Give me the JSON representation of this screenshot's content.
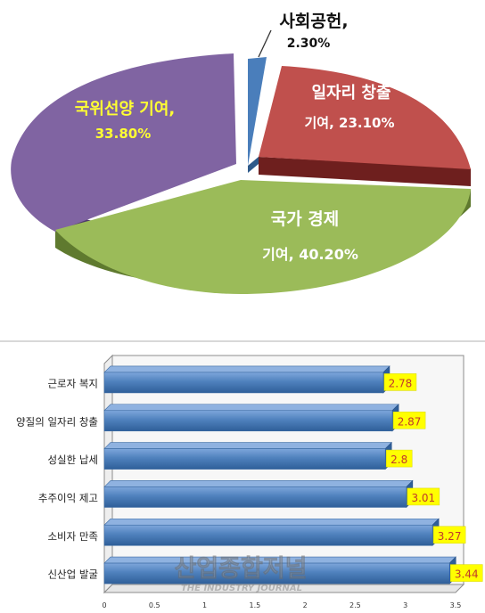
{
  "chart_data": [
    {
      "type": "pie",
      "title": "",
      "slices": [
        {
          "label": "사회공헌,",
          "value_label": "2.30%",
          "value": 2.3,
          "color": "#4a7ebb"
        },
        {
          "label": "일자리 창출",
          "value_label": "기여, 23.10%",
          "value": 23.1,
          "color": "#c0504d"
        },
        {
          "label": "국가 경제",
          "value_label": "기여, 40.20%",
          "value": 40.2,
          "color": "#9bbb59"
        },
        {
          "label": "국위선양 기여,",
          "value_label": "33.80%",
          "value": 33.8,
          "color": "#8064a2"
        }
      ]
    },
    {
      "type": "bar",
      "orientation": "horizontal",
      "title": "",
      "categories": [
        "근로자 복지",
        "양질의 일자리 창출",
        "성실한 납세",
        "추주이익 제고",
        "소비자 만족",
        "신산업 발굴"
      ],
      "values": [
        2.78,
        2.87,
        2.8,
        3.01,
        3.27,
        3.44
      ],
      "value_labels": [
        "2.78",
        "2.87",
        "2.8",
        "3.01",
        "3.27",
        "3.44"
      ],
      "xlim": [
        0,
        3.5
      ],
      "xticks": [
        "0",
        "0.5",
        "1",
        "1.5",
        "2",
        "2.5",
        "3",
        "3.5"
      ],
      "bar_color": "#4f81bd",
      "label_color": "#c0392b"
    }
  ],
  "watermark": {
    "title": "산업종합저널",
    "subtitle": "THE INDUSTRY JOURNAL"
  }
}
